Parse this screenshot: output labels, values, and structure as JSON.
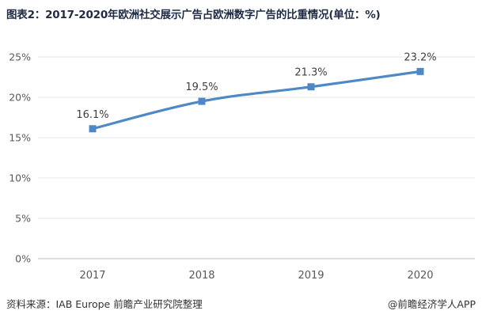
{
  "title": "图表2：2017-2020年欧洲社交展示广告占欧洲数字广告的比重情况(单位：%)",
  "source": "资料来源：IAB Europe 前瞻产业研究院整理",
  "brand": "@前瞻经济学人APP",
  "colors": {
    "line": "#4e88c7",
    "marker": "#4e88c7",
    "grid": "#e6e6e6",
    "axis": "#bfbfbf",
    "text": "#595959"
  },
  "chart_data": {
    "type": "line",
    "categories": [
      "2017",
      "2018",
      "2019",
      "2020"
    ],
    "values": [
      16.1,
      19.5,
      21.3,
      23.2
    ],
    "data_labels": [
      "16.1%",
      "19.5%",
      "21.3%",
      "23.2%"
    ],
    "yticks": [
      "0%",
      "5%",
      "10%",
      "15%",
      "20%",
      "25%"
    ],
    "ylim": [
      0,
      25
    ],
    "grid": true,
    "legend": "none"
  }
}
